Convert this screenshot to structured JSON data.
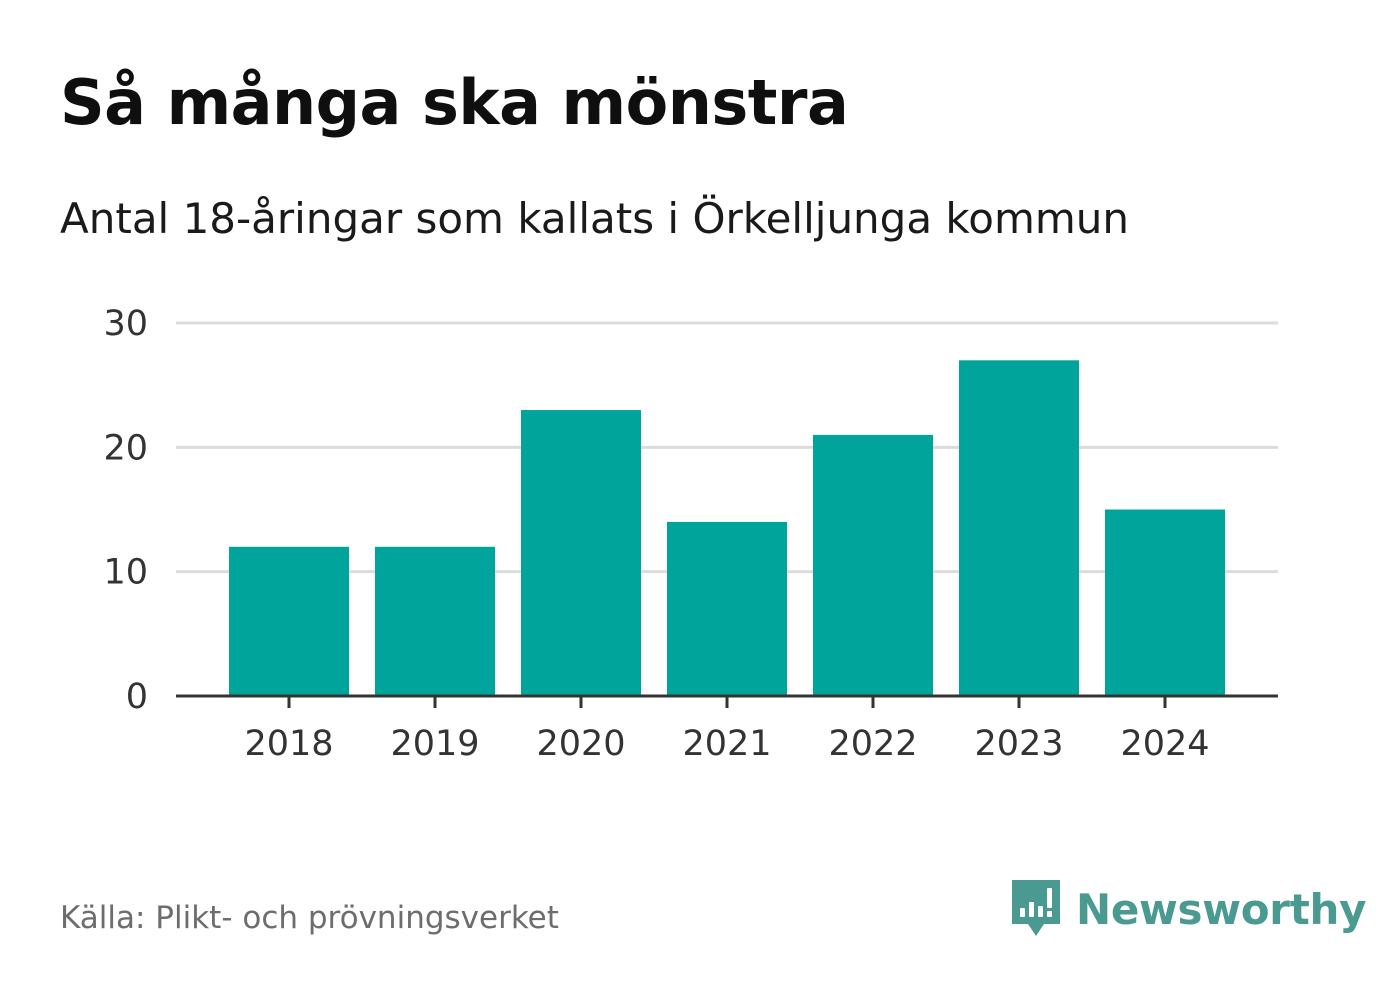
{
  "title": "Så många ska mönstra",
  "subtitle": "Antal 18-åringar som kallats i Örkelljunga kommun",
  "source": "Källa: Plikt- och prövningsverket",
  "brand": {
    "name": "Newsworthy",
    "logo_icon": "newsworthy-logo-icon",
    "color": "#4a9a92"
  },
  "chart_data": {
    "type": "bar",
    "categories": [
      "2018",
      "2019",
      "2020",
      "2021",
      "2022",
      "2023",
      "2024"
    ],
    "values": [
      12,
      12,
      23,
      14,
      21,
      27,
      15
    ],
    "ylim": [
      0,
      30
    ],
    "yticks": [
      "0",
      "10",
      "20",
      "30"
    ],
    "grid": true,
    "bar_color": "#00a49a",
    "xlabel": "",
    "ylabel": ""
  }
}
